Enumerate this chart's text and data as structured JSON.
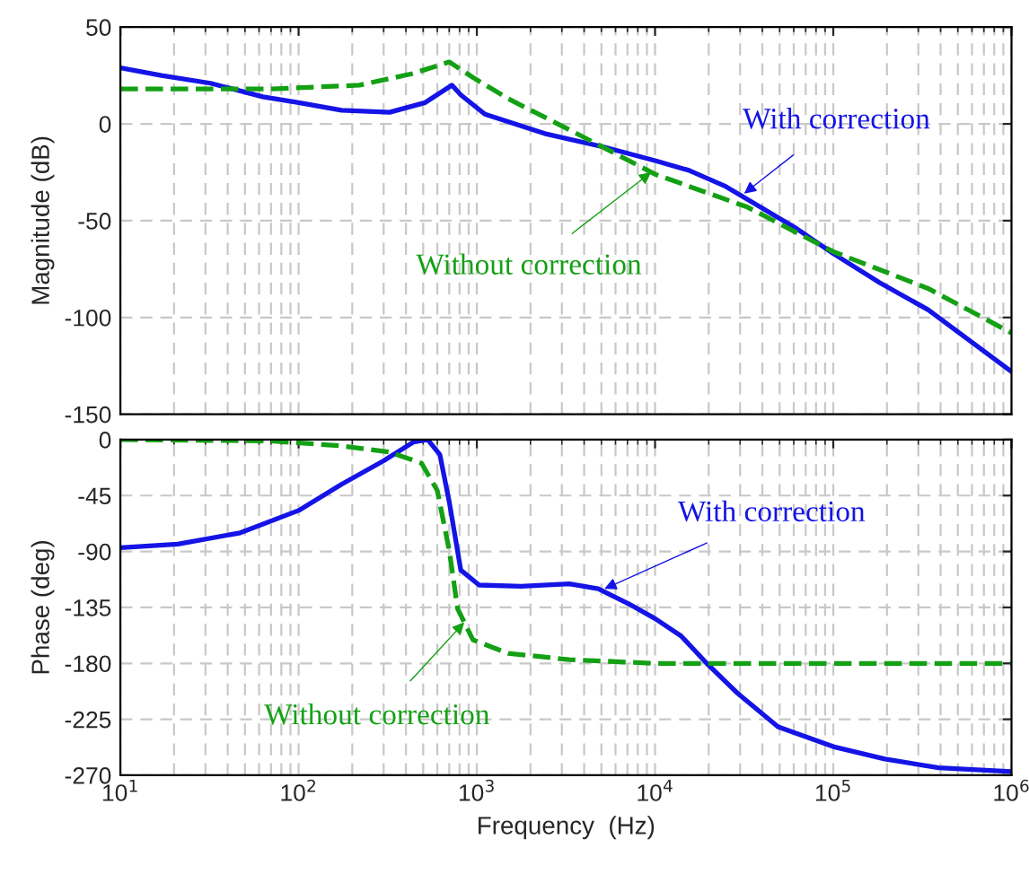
{
  "chart_data": [
    {
      "type": "line",
      "ylabel": "Magnitude (dB)",
      "log": "x",
      "xlim": [
        10,
        1000000
      ],
      "xticks": [
        10,
        100,
        1000,
        10000,
        100000,
        1000000
      ],
      "ylim": [
        -150,
        50
      ],
      "yticks": [
        -150,
        -100,
        -50,
        0,
        50
      ],
      "tick_labels": "y",
      "grid": true,
      "legend": false,
      "series": [
        {
          "color": "#1414e6",
          "line_style": "solid",
          "x": [
            10,
            17,
            32,
            63,
            100,
            174,
            324,
            513,
            724,
            813,
            1110,
            2400,
            5200,
            10000,
            15500,
            24500,
            39000,
            62000,
            100000,
            182000,
            340000,
            1000000
          ],
          "values": [
            29,
            25,
            21,
            14,
            11,
            7,
            6,
            11,
            20,
            15,
            5,
            -5,
            -12,
            -19,
            -24,
            -32,
            -43,
            -54,
            -67,
            -82,
            -96,
            -128
          ]
        },
        {
          "color": "#14a014",
          "line_style": "dashed",
          "x": [
            10,
            68,
            219,
            437,
            700,
            950,
            1500,
            3300,
            10000,
            33000,
            100000,
            340000,
            1000000
          ],
          "values": [
            18,
            18,
            20,
            26,
            32,
            24,
            13,
            -3,
            -26,
            -43,
            -66,
            -85,
            -108
          ]
        }
      ],
      "annotations": [
        {
          "text": "With correction",
          "x": 31600,
          "y": -36
        },
        {
          "text": "Without correction",
          "x": 9500,
          "y": -25
        }
      ]
    },
    {
      "type": "line",
      "xlabel": "Frequency  (Hz)",
      "ylabel": "Phase (deg)",
      "log": "x",
      "xlim": [
        10,
        1000000
      ],
      "xticks": [
        {
          "value": 10,
          "label": "10$^{1}$"
        },
        {
          "value": 100,
          "label": "10$^{2}$"
        },
        {
          "value": 1000,
          "label": "10$^{3}$"
        },
        {
          "value": 10000,
          "label": "10$^{4}$"
        },
        {
          "value": 100000,
          "label": "10$^{5}$"
        },
        {
          "value": 1000000,
          "label": "10$^{6}$"
        }
      ],
      "ylim": [
        -270,
        0
      ],
      "yticks": [
        -270,
        -225,
        -180,
        -135,
        -90,
        -45,
        0
      ],
      "grid": true,
      "legend": false,
      "series": [
        {
          "color": "#1414e6",
          "line_style": "solid",
          "x": [
            10,
            21,
            47,
            100,
            174,
            300,
            440,
            530,
            620,
            700,
            813,
            1030,
            1770,
            3300,
            4800,
            7100,
            10000,
            14000,
            19500,
            29000,
            49000,
            100000,
            195000,
            390000,
            1000000
          ],
          "values": [
            -87,
            -84,
            -75,
            -57,
            -36,
            -17,
            -2,
            0,
            -12,
            -50,
            -105,
            -117,
            -118,
            -116,
            -120,
            -132,
            -144,
            -158,
            -180,
            -204,
            -231,
            -247,
            -257,
            -264,
            -267
          ]
        },
        {
          "color": "#14a014",
          "line_style": "dashed",
          "x": [
            10,
            68,
            174,
            324,
            490,
            600,
            700,
            780,
            950,
            1500,
            3300,
            10000,
            1000000
          ],
          "values": [
            0,
            -1,
            -5,
            -10,
            -19,
            -41,
            -89,
            -136,
            -161,
            -172,
            -177,
            -180,
            -180
          ]
        }
      ],
      "annotations": [
        {
          "text": "With correction",
          "x": 5200,
          "y": -120
        },
        {
          "text": "Without correction",
          "x": 850,
          "y": -147
        }
      ]
    }
  ]
}
